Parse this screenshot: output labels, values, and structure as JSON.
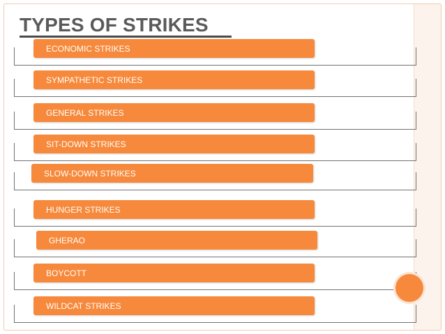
{
  "title": "TYPES OF STRIKES",
  "colors": {
    "bar": "#f6893b",
    "title": "#5a5a5a",
    "bracket": "#707070"
  },
  "items": [
    {
      "label": "ECONOMIC STRIKES"
    },
    {
      "label": "SYMPATHETIC STRIKES"
    },
    {
      "label": "GENERAL STRIKES"
    },
    {
      "label": "SIT-DOWN STRIKES"
    },
    {
      "label": "SLOW-DOWN STRIKES"
    },
    {
      "label": "HUNGER STRIKES"
    },
    {
      "label": "GHERAO"
    },
    {
      "label": "BOYCOTT"
    },
    {
      "label": "WILDCAT STRIKES"
    }
  ]
}
